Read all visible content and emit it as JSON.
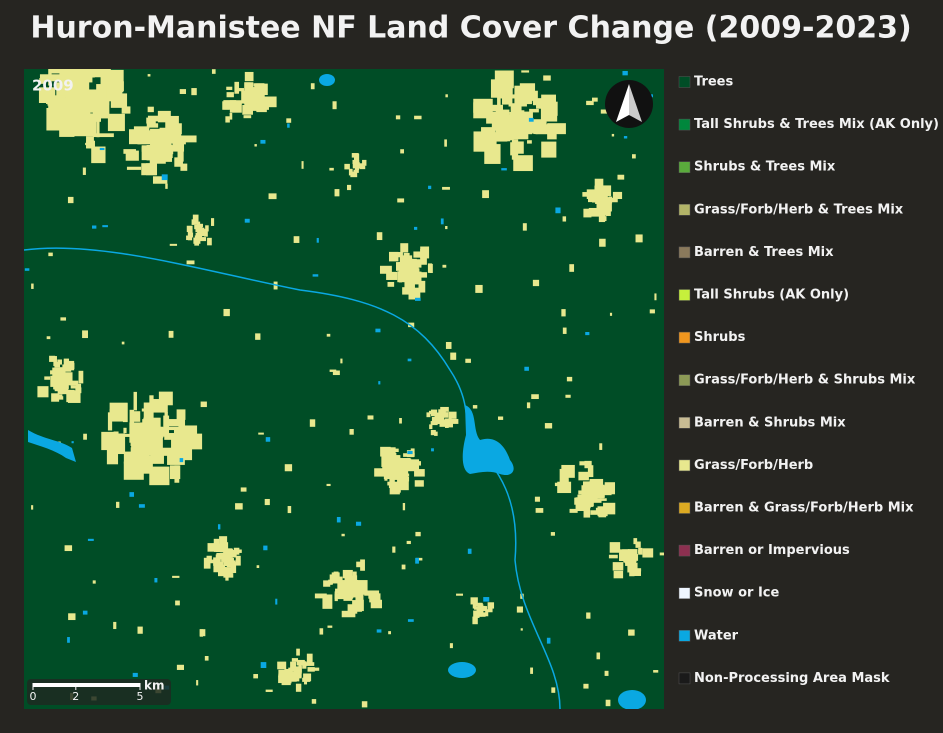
{
  "title": "Huron-Manistee NF Land Cover Change (2009-2023)",
  "map": {
    "year": "2009",
    "north_arrow": true
  },
  "scale_bar": {
    "ticks": [
      0,
      2,
      5
    ],
    "unit": "km"
  },
  "legend": [
    {
      "label": "Trees",
      "color": "#004d26"
    },
    {
      "label": "Tall Shrubs & Trees Mix (AK Only)",
      "color": "#00873c"
    },
    {
      "label": "Shrubs & Trees Mix",
      "color": "#5aab3c"
    },
    {
      "label": "Grass/Forb/Herb & Trees Mix",
      "color": "#b2b468"
    },
    {
      "label": "Barren & Trees Mix",
      "color": "#8a7a5c"
    },
    {
      "label": "Tall Shrubs (AK Only)",
      "color": "#c6f03c"
    },
    {
      "label": "Shrubs",
      "color": "#f0961e"
    },
    {
      "label": "Grass/Forb/Herb & Shrubs Mix",
      "color": "#8c9a56"
    },
    {
      "label": "Barren & Shrubs Mix",
      "color": "#c8bc94"
    },
    {
      "label": "Grass/Forb/Herb",
      "color": "#e8e88e"
    },
    {
      "label": "Barren & Grass/Forb/Herb Mix",
      "color": "#dcaa22"
    },
    {
      "label": "Barren or Impervious",
      "color": "#8c3050"
    },
    {
      "label": "Snow or Ice",
      "color": "#eef6ff"
    },
    {
      "label": "Water",
      "color": "#0aa8e2"
    },
    {
      "label": "Non-Processing Area Mask",
      "color": "#1a1a1a"
    }
  ]
}
